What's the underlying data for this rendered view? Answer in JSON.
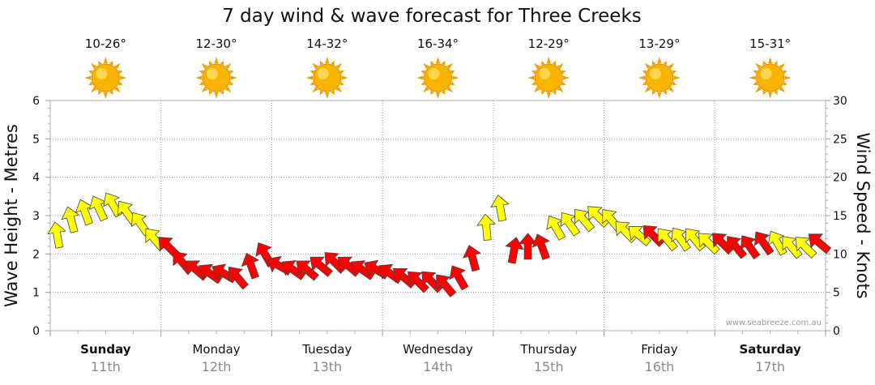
{
  "chart_data": {
    "type": "line",
    "title": "7 day wind & wave forecast for Three Creeks",
    "left_axis": {
      "label": "Wave Height - Metres",
      "range": [
        0,
        6
      ],
      "ticks": [
        "0",
        "1",
        "2",
        "3",
        "4",
        "5",
        "6"
      ]
    },
    "right_axis": {
      "label": "Wind Speed - Knots",
      "range": [
        0,
        30
      ],
      "ticks": [
        "0",
        "5",
        "10",
        "15",
        "20",
        "25",
        "30"
      ]
    },
    "credit": "www.seabreeze.com.au",
    "days": [
      {
        "name": "Sunday",
        "date": "11th",
        "temp": "10-26°",
        "bold": true,
        "icon": "sun-icon"
      },
      {
        "name": "Monday",
        "date": "12th",
        "temp": "12-30°",
        "bold": false,
        "icon": "sun-icon"
      },
      {
        "name": "Tuesday",
        "date": "13th",
        "temp": "14-32°",
        "bold": false,
        "icon": "sun-icon"
      },
      {
        "name": "Wednesday",
        "date": "14th",
        "temp": "16-34°",
        "bold": false,
        "icon": "sun-icon"
      },
      {
        "name": "Thursday",
        "date": "15th",
        "temp": "12-29°",
        "bold": false,
        "icon": "sun-icon"
      },
      {
        "name": "Friday",
        "date": "16th",
        "temp": "13-29°",
        "bold": false,
        "icon": "sun-icon"
      },
      {
        "name": "Saturday",
        "date": "17th",
        "temp": "15-31°",
        "bold": true,
        "icon": "sun-icon"
      }
    ],
    "wind_series": {
      "name": "Wind Speed",
      "unit": "knots",
      "points_per_day": 8,
      "colors": {
        "onshore": "#ffff00",
        "offshore": "#ff0000"
      },
      "values": [
        12.5,
        14.5,
        15.5,
        16.0,
        16.5,
        15.5,
        14.0,
        12.0,
        11.0,
        9.0,
        8.0,
        7.5,
        7.5,
        7.0,
        8.5,
        10.0,
        8.5,
        8.0,
        8.0,
        8.5,
        9.0,
        8.5,
        8.0,
        8.0,
        7.5,
        7.0,
        6.5,
        6.5,
        6.0,
        7.0,
        9.5,
        13.5,
        16.0,
        10.5,
        11.0,
        11.0,
        13.5,
        14.0,
        14.5,
        15.0,
        14.5,
        13.0,
        12.5,
        12.5,
        12.0,
        12.0,
        12.0,
        11.5,
        11.5,
        11.0,
        11.0,
        11.5,
        11.5,
        11.0,
        11.0,
        11.5
      ],
      "direction_deg": [
        10,
        15,
        20,
        25,
        30,
        35,
        35,
        40,
        45,
        40,
        50,
        55,
        60,
        40,
        20,
        30,
        60,
        55,
        50,
        50,
        45,
        50,
        55,
        60,
        55,
        50,
        45,
        45,
        40,
        30,
        15,
        5,
        10,
        350,
        0,
        20,
        30,
        35,
        40,
        45,
        40,
        45,
        50,
        45,
        40,
        35,
        40,
        45,
        45,
        40,
        35,
        35,
        30,
        40,
        45,
        50
      ],
      "color_key": [
        "y",
        "y",
        "y",
        "y",
        "y",
        "y",
        "y",
        "y",
        "r",
        "r",
        "r",
        "r",
        "r",
        "r",
        "r",
        "r",
        "r",
        "r",
        "r",
        "r",
        "r",
        "r",
        "r",
        "r",
        "r",
        "r",
        "r",
        "r",
        "r",
        "r",
        "r",
        "y",
        "y",
        "r",
        "r",
        "r",
        "y",
        "y",
        "y",
        "y",
        "y",
        "y",
        "y",
        "r",
        "y",
        "y",
        "y",
        "y",
        "r",
        "r",
        "r",
        "r",
        "y",
        "y",
        "y",
        "r"
      ]
    }
  }
}
